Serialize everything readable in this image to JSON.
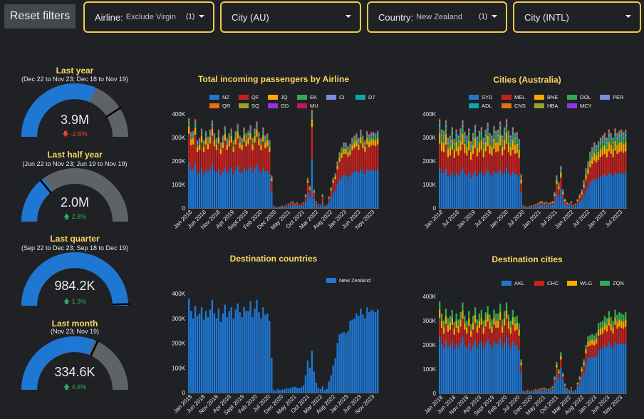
{
  "toolbar": {
    "reset_label": "Reset filters"
  },
  "filters": [
    {
      "label": "Airline:",
      "value": "Exclude Virgin",
      "count": "(1)"
    },
    {
      "label": "City (AU)",
      "value": "",
      "count": ""
    },
    {
      "label": "Country:",
      "value": "New Zealand",
      "count": "(1)"
    },
    {
      "label": "City (INTL)",
      "value": "",
      "count": ""
    }
  ],
  "gauges": [
    {
      "title": "Last year",
      "subtitle": "(Dec 22 to Nov 23; Dec 18 to Nov 19)",
      "value": "3.9M",
      "delta": "-2.6%",
      "direction": "down",
      "fill_fraction": 0.63,
      "target_fraction": 0.82
    },
    {
      "title": "Last half year",
      "subtitle": "(Jun 22 to Nov 23; Jun 19 to Nov 19)",
      "value": "2.0M",
      "delta": "2.8%",
      "direction": "up",
      "fill_fraction": 0.3,
      "target_fraction": 0.28
    },
    {
      "title": "Last quarter",
      "subtitle": "(Sep 22 to Dec 23; Sep 18 to Dec 19)",
      "value": "984.2K",
      "delta": "1.3%",
      "direction": "up",
      "fill_fraction": 1.0,
      "target_fraction": 0.99
    },
    {
      "title": "Last month",
      "subtitle": "(Nov 23; Nov 19)",
      "value": "334.6K",
      "delta": "4.6%",
      "direction": "up",
      "fill_fraction": 0.62,
      "target_fraction": 0.64
    }
  ],
  "colors": {
    "blue": "#1f77d4",
    "red": "#c5221f",
    "yellow": "#f9ab00",
    "green": "#34a853",
    "lavender": "#7e8ce0",
    "teal": "#12a4af",
    "orange": "#e8710a",
    "olive": "#9aa12a",
    "purple": "#9334e6",
    "magenta": "#c2185b",
    "gauge_track": "#5f6368"
  },
  "chart_data": [
    {
      "type": "bar",
      "stacked": true,
      "title": "Total incoming passengers by Airline",
      "legend": [
        {
          "name": "NZ",
          "color": "#1f77d4"
        },
        {
          "name": "QF",
          "color": "#c5221f"
        },
        {
          "name": "JQ",
          "color": "#f9ab00"
        },
        {
          "name": "EK",
          "color": "#34a853"
        },
        {
          "name": "CI",
          "color": "#7e8ce0"
        },
        {
          "name": "D7",
          "color": "#12a4af"
        },
        {
          "name": "QR",
          "color": "#e8710a"
        },
        {
          "name": "SQ",
          "color": "#9aa12a"
        },
        {
          "name": "OD",
          "color": "#9334e6"
        },
        {
          "name": "MU",
          "color": "#c2185b"
        }
      ],
      "ylim": [
        0,
        400000
      ],
      "yticks": [
        "0",
        "100K",
        "200K",
        "300K",
        "400K"
      ],
      "xticks": [
        "Jan 2018",
        "Jun 2018",
        "Nov 2018",
        "Apr 2019",
        "Sept 2019",
        "Feb 2020",
        "Dec 2020",
        "May 2021",
        "Oct 2021",
        "Mar 2022",
        "Aug 2022",
        "Jan 2023",
        "Jun 2023",
        "Nov 2023"
      ],
      "totals_k": [
        385,
        325,
        330,
        380,
        290,
        300,
        340,
        290,
        330,
        305,
        335,
        375,
        320,
        300,
        335,
        280,
        310,
        350,
        300,
        320,
        340,
        290,
        330,
        360,
        310,
        300,
        345,
        320,
        330,
        355,
        300,
        340,
        370,
        325,
        300,
        345,
        310,
        320,
        290,
        140,
        10,
        5,
        5,
        8,
        10,
        10,
        15,
        20,
        25,
        30,
        20,
        25,
        15,
        20,
        25,
        60,
        130,
        95,
        420,
        80,
        30,
        20,
        15,
        60,
        10,
        15,
        50,
        90,
        130,
        150,
        200,
        240,
        260,
        280,
        280,
        265,
        275,
        300,
        310,
        320,
        300,
        335,
        310,
        290,
        330,
        315,
        325,
        325,
        320,
        330
      ],
      "shares": [
        0.5,
        0.32,
        0.08,
        0.04,
        0.015,
        0.01,
        0.01,
        0.01,
        0.008,
        0.007
      ]
    },
    {
      "type": "bar",
      "stacked": true,
      "title": "Cities (Australia)",
      "legend": [
        {
          "name": "SYD",
          "color": "#1f77d4"
        },
        {
          "name": "MEL",
          "color": "#c5221f"
        },
        {
          "name": "BNE",
          "color": "#f9ab00"
        },
        {
          "name": "OOL",
          "color": "#34a853"
        },
        {
          "name": "PER",
          "color": "#7e8ce0"
        },
        {
          "name": "ADL",
          "color": "#12a4af"
        },
        {
          "name": "CNS",
          "color": "#e8710a"
        },
        {
          "name": "HBA",
          "color": "#9aa12a"
        },
        {
          "name": "MCY",
          "color": "#9334e6"
        }
      ],
      "ylim": [
        0,
        400000
      ],
      "yticks": [
        "0",
        "100K",
        "200K",
        "300K",
        "400K"
      ],
      "xticks": [
        "Jan 2018",
        "Jul 2018",
        "Jan 2019",
        "Jul 2019",
        "Jan 2020",
        "Jul 2020",
        "Jan 2021",
        "Jul 2021",
        "Jan 2022",
        "Jul 2022",
        "Jan 2023",
        "Jul 2023"
      ],
      "totals_k": [
        380,
        335,
        330,
        375,
        300,
        310,
        345,
        295,
        335,
        310,
        340,
        375,
        325,
        310,
        340,
        285,
        320,
        355,
        305,
        330,
        345,
        300,
        335,
        365,
        320,
        310,
        350,
        330,
        335,
        370,
        310,
        345,
        380,
        330,
        310,
        345,
        320,
        325,
        295,
        145,
        12,
        8,
        6,
        10,
        12,
        14,
        18,
        22,
        28,
        30,
        24,
        28,
        22,
        26,
        30,
        70,
        140,
        110,
        180,
        80,
        40,
        25,
        20,
        30,
        15,
        20,
        40,
        60,
        80,
        120,
        170,
        200,
        240,
        260,
        280,
        270,
        285,
        300,
        310,
        320,
        300,
        335,
        320,
        300,
        340,
        320,
        330,
        335,
        325,
        335
      ],
      "shares": [
        0.45,
        0.27,
        0.12,
        0.07,
        0.03,
        0.02,
        0.015,
        0.015,
        0.01
      ]
    },
    {
      "type": "bar",
      "title": "Destination countries",
      "legend": [
        {
          "name": "New Zealand",
          "color": "#1f77d4"
        }
      ],
      "ylim": [
        0,
        400000
      ],
      "yticks": [
        "0",
        "100K",
        "200K",
        "300K",
        "400K"
      ],
      "xticks": [
        "Jan 2018",
        "Jun 2018",
        "Nov 2018",
        "Apr 2019",
        "Sept 2019",
        "Feb 2020",
        "Jul 2020",
        "Dec 2020",
        "May 2021",
        "Oct 2021",
        "Mar 2022",
        "Aug 2022",
        "Jan 2023",
        "Jun 2023",
        "Nov 2023"
      ],
      "totals_k": [
        380,
        330,
        300,
        350,
        310,
        320,
        345,
        295,
        330,
        305,
        335,
        375,
        320,
        300,
        340,
        285,
        320,
        355,
        305,
        330,
        345,
        300,
        335,
        360,
        325,
        305,
        345,
        330,
        330,
        370,
        305,
        340,
        375,
        325,
        300,
        345,
        315,
        320,
        290,
        140,
        12,
        8,
        15,
        10,
        12,
        14,
        18,
        16,
        20,
        22,
        24,
        20,
        18,
        22,
        30,
        70,
        130,
        100,
        170,
        85,
        40,
        20,
        15,
        25,
        10,
        15,
        45,
        70,
        110,
        140,
        200,
        235,
        240,
        245,
        240,
        250,
        290,
        295,
        300,
        320,
        310,
        340,
        315,
        300,
        345,
        325,
        335,
        330,
        325,
        335
      ]
    },
    {
      "type": "bar",
      "stacked": true,
      "title": "Destination cities",
      "legend": [
        {
          "name": "AKL",
          "color": "#1f77d4"
        },
        {
          "name": "CHC",
          "color": "#c5221f"
        },
        {
          "name": "WLG",
          "color": "#f9ab00"
        },
        {
          "name": "ZQN",
          "color": "#34a853"
        }
      ],
      "ylim": [
        0,
        400000
      ],
      "yticks": [
        "0",
        "100K",
        "200K",
        "300K",
        "400K"
      ],
      "xticks": [
        "Jan 2018",
        "Jun 2018",
        "Nov 2018",
        "Apr 2019",
        "Sept 2019",
        "Feb 2020",
        "Jul 2020",
        "Dec 2020",
        "May 2021",
        "Oct 2021",
        "Mar 2022",
        "Aug 2022",
        "Jan 2023",
        "Jun 2023",
        "Nov 2023"
      ],
      "totals_k": [
        380,
        330,
        300,
        350,
        310,
        320,
        345,
        295,
        330,
        305,
        335,
        375,
        320,
        300,
        340,
        285,
        320,
        355,
        305,
        330,
        345,
        300,
        335,
        360,
        325,
        305,
        345,
        330,
        330,
        370,
        305,
        340,
        375,
        325,
        300,
        345,
        315,
        320,
        290,
        140,
        12,
        8,
        15,
        10,
        12,
        14,
        18,
        16,
        20,
        22,
        24,
        20,
        18,
        22,
        30,
        70,
        130,
        100,
        170,
        85,
        40,
        20,
        15,
        25,
        10,
        15,
        45,
        70,
        110,
        140,
        200,
        235,
        240,
        245,
        240,
        250,
        290,
        295,
        300,
        320,
        310,
        340,
        315,
        300,
        345,
        325,
        335,
        330,
        325,
        335
      ],
      "shares": [
        0.62,
        0.2,
        0.09,
        0.09
      ]
    }
  ]
}
